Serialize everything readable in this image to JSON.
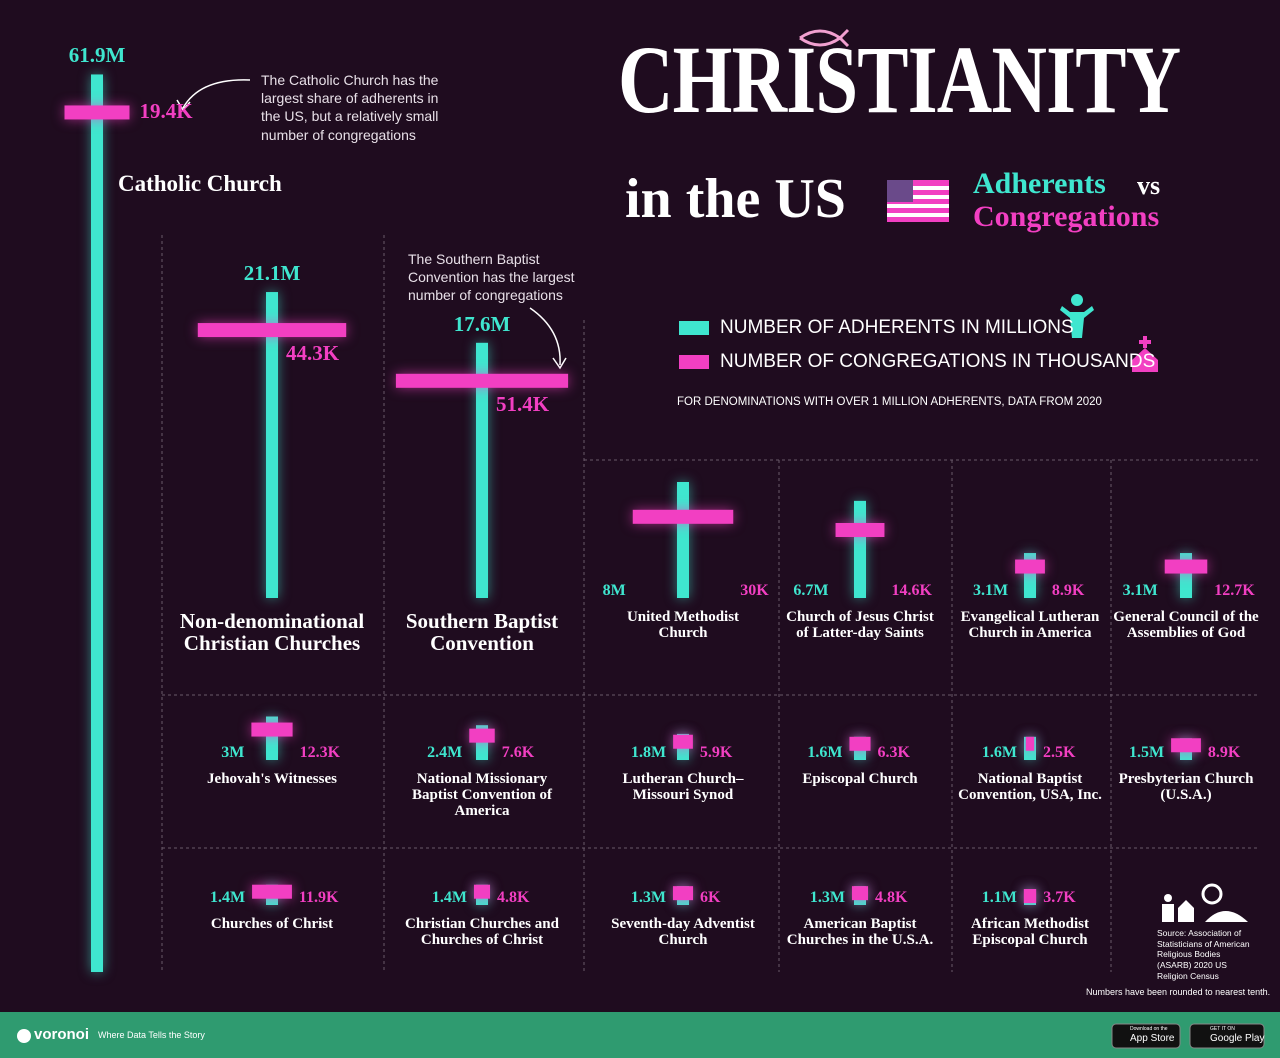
{
  "chart_data": {
    "type": "cross",
    "title": "CHRISTIANITY",
    "title_line2": "in the US",
    "subtitle_adherents": "Adherents",
    "subtitle_vs": "vs",
    "subtitle_congregations": "Congregations",
    "note": "FOR DENOMINATIONS  WITH OVER 1 MILLION ADHERENTS, DATA FROM 2020",
    "annotations": [
      "The Catholic Church has the largest share of adherents in the US, but a relatively small number of congregations",
      "The Southern Baptist Convention has the largest number of congregations"
    ],
    "source": "Source: Association of Statisticians of American Religious Bodies (ASARB) 2020 US Religion Census",
    "footnote": "Numbers have been rounded to nearest tenth.",
    "categories": [
      "Catholic Church",
      "Non-denominational Christian Churches",
      "Southern Baptist Convention",
      "United Methodist Church",
      "Church of Jesus Christ of Latter-day Saints",
      "Evangelical Lutheran Church in America",
      "General Council of the Assemblies of God",
      "Jehovah's Witnesses",
      "National Missionary Baptist Convention of America",
      "Lutheran Church–Missouri Synod",
      "Episcopal Church",
      "National Baptist Convention, USA, Inc.",
      "Presbyterian Church (U.S.A.)",
      "Churches of Christ",
      "Christian Churches and Churches of Christ",
      "Seventh-day Adventist Church",
      "American Baptist Churches in the U.S.A.",
      "African Methodist Episcopal Church"
    ],
    "series": [
      {
        "name": "NUMBER OF ADHERENTS IN MILLIONS",
        "color": "#3fe6cf",
        "values": [
          61.9,
          21.1,
          17.6,
          8,
          6.7,
          3.1,
          3.1,
          3,
          2.4,
          1.8,
          1.6,
          1.6,
          1.5,
          1.4,
          1.4,
          1.3,
          1.3,
          1.1
        ],
        "value_labels": [
          "61.9M",
          "21.1M",
          "17.6M",
          "8M",
          "6.7M",
          "3.1M",
          "3.1M",
          "3M",
          "2.4M",
          "1.8M",
          "1.6M",
          "1.6M",
          "1.5M",
          "1.4M",
          "1.4M",
          "1.3M",
          "1.3M",
          "1.1M"
        ]
      },
      {
        "name": "NUMBER OF CONGREGATIONS IN THOUSANDS",
        "color": "#f23fc2",
        "values": [
          19.4,
          44.3,
          51.4,
          30,
          14.6,
          8.9,
          12.7,
          12.3,
          7.6,
          5.9,
          6.3,
          2.5,
          8.9,
          11.9,
          4.8,
          6,
          4.8,
          3.7
        ],
        "value_labels": [
          "19.4K",
          "44.3K",
          "51.4K",
          "30K",
          "14.6K",
          "8.9K",
          "12.7K",
          "12.3K",
          "7.6K",
          "5.9K",
          "6.3K",
          "2.5K",
          "8.9K",
          "11.9K",
          "4.8K",
          "6K",
          "4.8K",
          "3.7K"
        ]
      }
    ],
    "footer": {
      "brand": "voronoi",
      "tagline": "Where Data Tells the Story",
      "app_store_small": "Download on the",
      "app_store": "App Store",
      "google_play_small": "GET IT ON",
      "google_play": "Google Play"
    }
  }
}
